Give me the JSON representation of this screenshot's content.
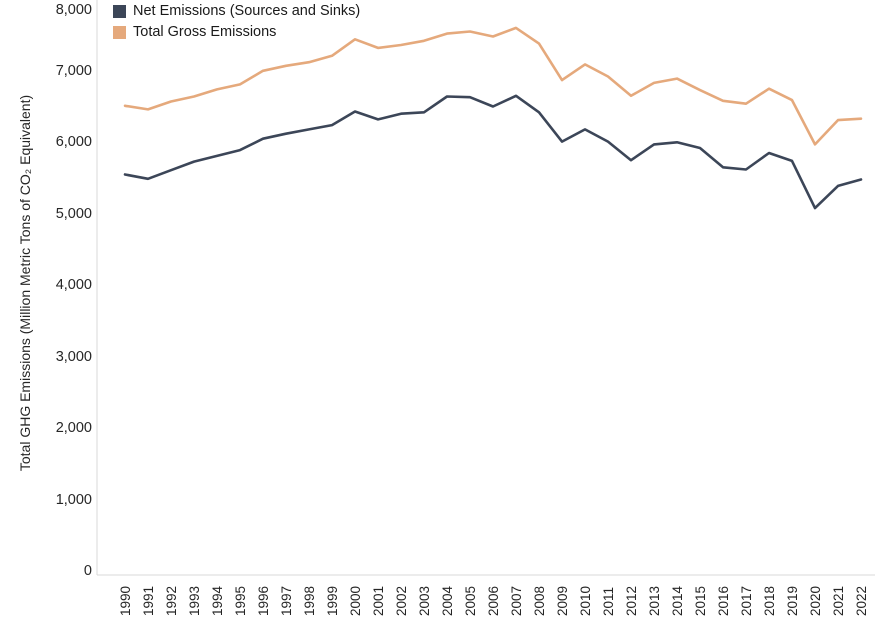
{
  "chart": {
    "y_axis_title": "Total GHG Emissions (Million Metric Tons of CO₂ Equivalent)"
  },
  "colors": {
    "net_emissions": "#3C4658",
    "gross_emissions": "#E5A97C",
    "axis_line": "#D9D9D9",
    "text": "#262626"
  },
  "chart_data": {
    "type": "line",
    "title": "",
    "xlabel": "",
    "ylabel": "Total GHG Emissions (Million Metric Tons of CO₂ Equivalent)",
    "ylim": [
      0,
      8000
    ],
    "grid": false,
    "legend_position": "top-left",
    "x": [
      1990,
      1991,
      1992,
      1993,
      1994,
      1995,
      1996,
      1997,
      1998,
      1999,
      2000,
      2001,
      2002,
      2003,
      2004,
      2005,
      2006,
      2007,
      2008,
      2009,
      2010,
      2011,
      2012,
      2013,
      2014,
      2015,
      2016,
      2017,
      2018,
      2019,
      2020,
      2021,
      2022
    ],
    "y_ticks": [
      {
        "value": 0,
        "label": "0"
      },
      {
        "value": 1000,
        "label": "1,000"
      },
      {
        "value": 2000,
        "label": "2,000"
      },
      {
        "value": 3000,
        "label": "3,000"
      },
      {
        "value": 4000,
        "label": "4,000"
      },
      {
        "value": 5000,
        "label": "5,000"
      },
      {
        "value": 6000,
        "label": "6,000"
      },
      {
        "value": 7000,
        "label": "7,000"
      },
      {
        "value": 8000,
        "label": "8,000"
      }
    ],
    "series": [
      {
        "name": "Net Emissions (Sources and Sinks)",
        "color": "#3C4658",
        "values": [
          5560,
          5500,
          5620,
          5740,
          5820,
          5900,
          6060,
          6130,
          6190,
          6250,
          6440,
          6330,
          6410,
          6430,
          6650,
          6640,
          6510,
          6660,
          6430,
          6020,
          6190,
          6020,
          5760,
          5980,
          6010,
          5930,
          5660,
          5630,
          5860,
          5750,
          5090,
          5400,
          5490
        ]
      },
      {
        "name": "Total Gross Emissions",
        "color": "#E5A97C",
        "values": [
          6520,
          6470,
          6580,
          6650,
          6750,
          6820,
          7010,
          7080,
          7130,
          7220,
          7450,
          7330,
          7370,
          7430,
          7530,
          7560,
          7490,
          7610,
          7390,
          6880,
          7100,
          6930,
          6660,
          6840,
          6900,
          6740,
          6590,
          6550,
          6760,
          6600,
          5980,
          6320,
          6340
        ]
      }
    ]
  }
}
